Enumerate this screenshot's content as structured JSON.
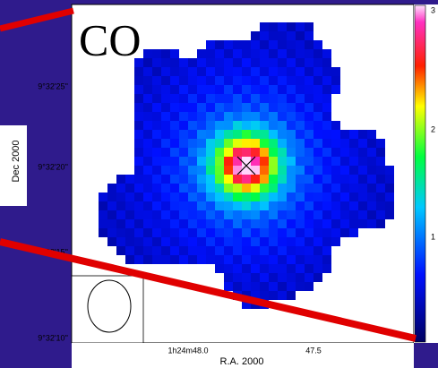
{
  "figure": {
    "overlay_label": "CO",
    "y_axis": {
      "label": "Dec 2000",
      "ticks": [
        "9°32'25''",
        "9°32'20''",
        "9°32'15''",
        "9°32'10''"
      ]
    },
    "x_axis": {
      "label": "R.A. 2000",
      "ticks": [
        "1h24m48.0",
        "47.5"
      ]
    },
    "colorbar": {
      "ticks": [
        "3",
        "2",
        "1"
      ]
    }
  }
}
